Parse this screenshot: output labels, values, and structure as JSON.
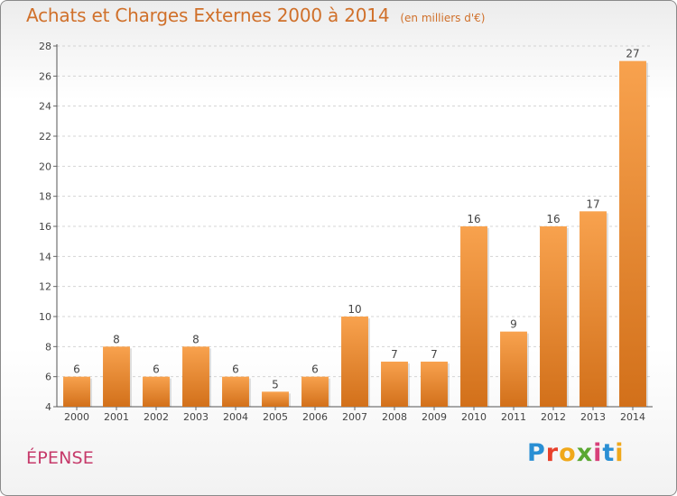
{
  "header": {
    "title": "Achats et Charges Externes 2000 à 2014",
    "subtitle": "(en milliers d'€)"
  },
  "footer": {
    "commune": "ÉPENSE",
    "brand": "Proxiti",
    "brand_colors": [
      "#2a8fd4",
      "#e8402a",
      "#f0a81a",
      "#5aa832",
      "#d8407a",
      "#2a8fd4",
      "#f0a81a"
    ]
  },
  "colors": {
    "bar_light": "#f8a24e",
    "bar_dark": "#d2701a",
    "title": "#d0702a",
    "commune": "#c63a6a"
  },
  "chart_data": {
    "type": "bar",
    "title": "Achats et Charges Externes 2000 à 2014",
    "subtitle": "(en milliers d'€)",
    "categories": [
      "2000",
      "2001",
      "2002",
      "2003",
      "2004",
      "2005",
      "2006",
      "2007",
      "2008",
      "2009",
      "2010",
      "2011",
      "2012",
      "2013",
      "2014"
    ],
    "values": [
      6,
      8,
      6,
      8,
      6,
      5,
      6,
      10,
      7,
      7,
      16,
      9,
      16,
      17,
      27
    ],
    "ylim": [
      4,
      28
    ],
    "yticks": [
      4,
      6,
      8,
      10,
      12,
      14,
      16,
      18,
      20,
      22,
      24,
      26,
      28
    ],
    "grid": true,
    "data_labels": true
  }
}
